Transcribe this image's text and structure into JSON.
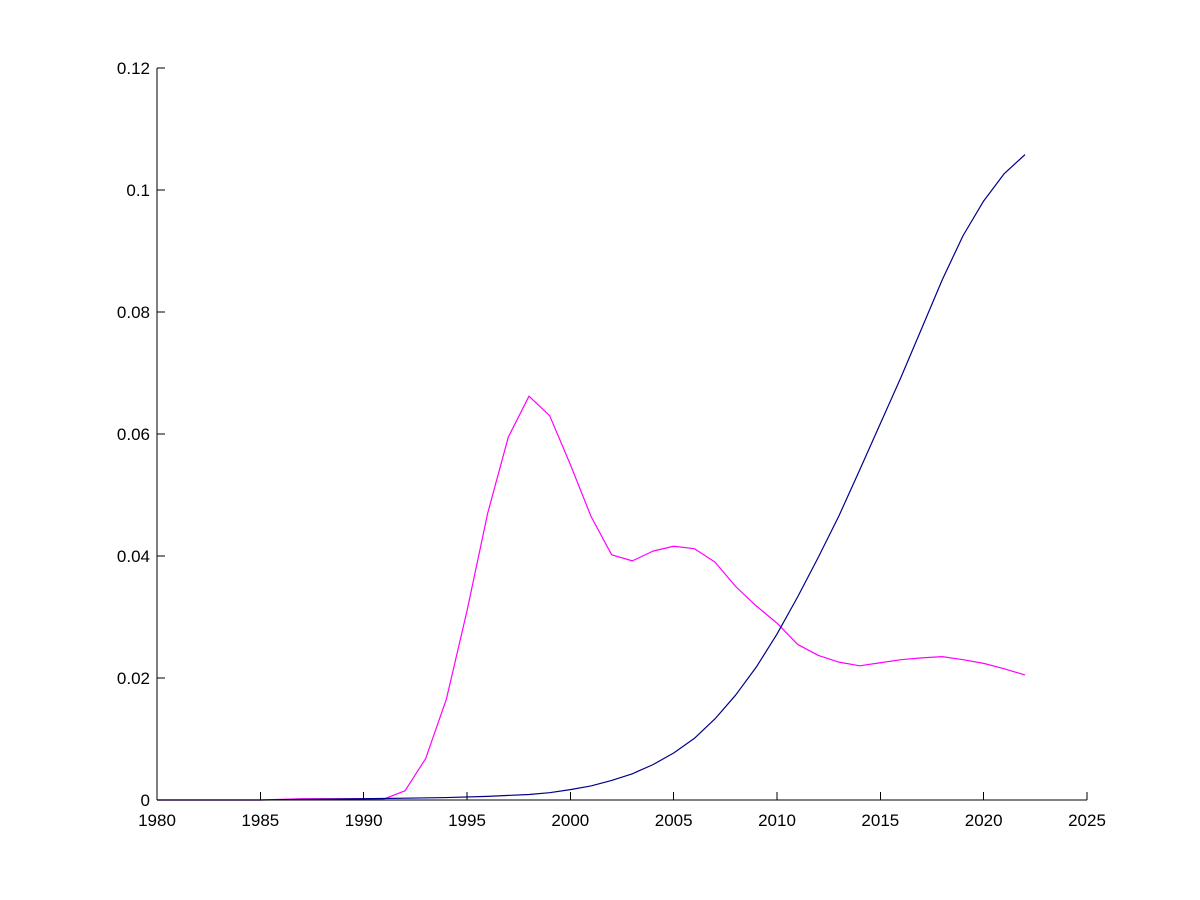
{
  "chart_data": {
    "type": "line",
    "title": "",
    "xlabel": "",
    "ylabel": "",
    "xlim": [
      1980,
      2025
    ],
    "ylim": [
      0,
      0.12
    ],
    "xticks": [
      1980,
      1985,
      1990,
      1995,
      2000,
      2005,
      2010,
      2015,
      2020,
      2025
    ],
    "yticks": [
      0,
      0.02,
      0.04,
      0.06,
      0.08,
      0.1,
      0.12
    ],
    "xtick_labels": [
      "1980",
      "1985",
      "1990",
      "1995",
      "2000",
      "2005",
      "2010",
      "2015",
      "2020",
      "2025"
    ],
    "ytick_labels": [
      "0",
      "0.02",
      "0.04",
      "0.06",
      "0.08",
      "0.1",
      "0.12"
    ],
    "grid": false,
    "legend": "none",
    "series": [
      {
        "color": "#ff00ff",
        "x": [
          1980,
          1985,
          1986,
          1987,
          1988,
          1989,
          1990,
          1991,
          1992,
          1993,
          1994,
          1995,
          1996,
          1997,
          1998,
          1999,
          2000,
          2001,
          2002,
          2003,
          2004,
          2005,
          2006,
          2007,
          2008,
          2009,
          2010,
          2011,
          2012,
          2013,
          2014,
          2015,
          2016,
          2017,
          2018,
          2019,
          2020,
          2021,
          2022
        ],
        "y": [
          0,
          0,
          0.0001,
          0.0002,
          0.0002,
          0.0002,
          0.0002,
          0.0002,
          0.0015,
          0.0068,
          0.0165,
          0.031,
          0.047,
          0.0595,
          0.0662,
          0.063,
          0.055,
          0.0465,
          0.0402,
          0.0392,
          0.0408,
          0.0416,
          0.0412,
          0.039,
          0.035,
          0.0318,
          0.029,
          0.0255,
          0.0237,
          0.0226,
          0.022,
          0.0225,
          0.023,
          0.0233,
          0.0235,
          0.023,
          0.0224,
          0.0215,
          0.0205
        ]
      },
      {
        "color": "#00008b",
        "x": [
          1980,
          1985,
          1990,
          1992,
          1994,
          1996,
          1998,
          1999,
          2000,
          2001,
          2002,
          2003,
          2004,
          2005,
          2006,
          2007,
          2008,
          2009,
          2010,
          2011,
          2012,
          2013,
          2014,
          2015,
          2016,
          2017,
          2018,
          2019,
          2020,
          2021,
          2022
        ],
        "y": [
          0,
          0,
          0.0002,
          0.0003,
          0.0004,
          0.0006,
          0.0009,
          0.0012,
          0.0017,
          0.0023,
          0.0032,
          0.0043,
          0.0058,
          0.0077,
          0.0101,
          0.0133,
          0.0172,
          0.0218,
          0.0272,
          0.0333,
          0.0398,
          0.0466,
          0.0541,
          0.0617,
          0.0693,
          0.0773,
          0.0853,
          0.0925,
          0.0982,
          0.1027,
          0.1058
        ]
      }
    ]
  }
}
